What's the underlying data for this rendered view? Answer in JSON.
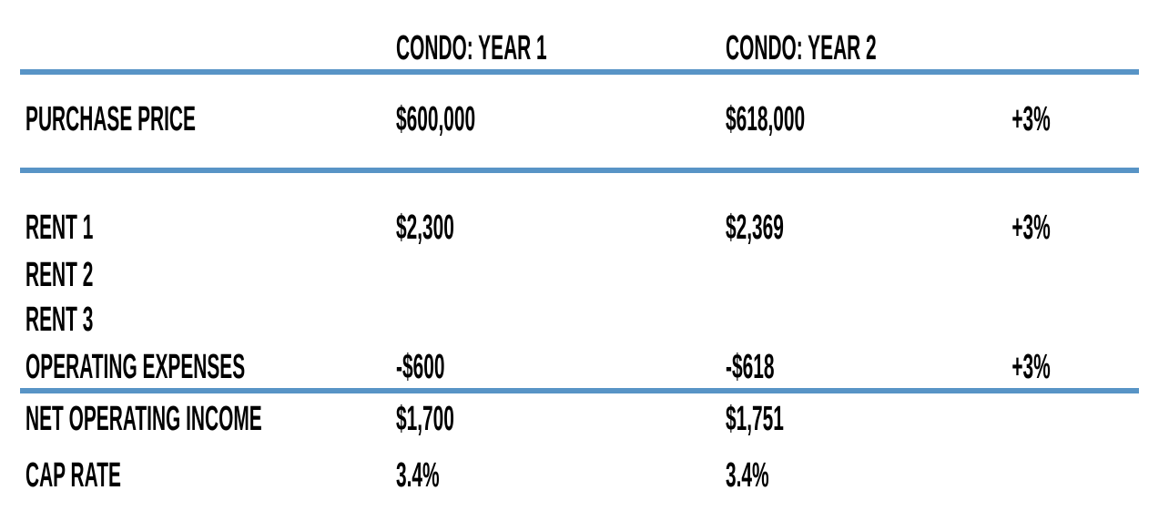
{
  "theme": {
    "accent_color": "#5894C6",
    "text_color": "#000000",
    "background_color": "#FFFFFF"
  },
  "table": {
    "headers": {
      "label": "",
      "year1": "CONDO: YEAR 1",
      "year2": "CONDO: YEAR 2",
      "change": ""
    },
    "rows": [
      {
        "label": "PURCHASE PRICE",
        "year1": "$600,000",
        "year2": "$618,000",
        "change": "+3%"
      },
      {
        "label": "RENT 1",
        "year1": "$2,300",
        "year2": "$2,369",
        "change": "+3%"
      },
      {
        "label": "RENT 2",
        "year1": "",
        "year2": "",
        "change": ""
      },
      {
        "label": "RENT 3",
        "year1": "",
        "year2": "",
        "change": ""
      },
      {
        "label": "OPERATING EXPENSES",
        "year1": "-$600",
        "year2": "-$618",
        "change": "+3%"
      },
      {
        "label": "NET OPERATING INCOME",
        "year1": "$1,700",
        "year2": "$1,751",
        "change": ""
      },
      {
        "label": "CAP RATE",
        "year1": "3.4%",
        "year2": "3.4%",
        "change": ""
      }
    ]
  }
}
